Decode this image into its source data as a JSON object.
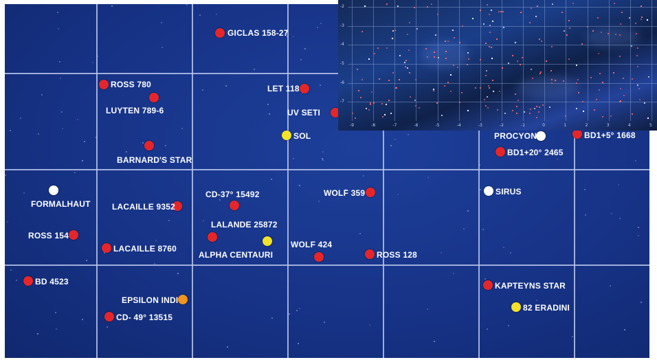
{
  "stars": [
    {
      "name": "GICLAS 158-27",
      "color": "#e4262b"
    },
    {
      "name": "ROSS 780",
      "color": "#e4262b"
    },
    {
      "name": "LUYTEN 789-6",
      "color": "#e4262b"
    },
    {
      "name": "LET 118",
      "color": "#e4262b"
    },
    {
      "name": "UV SETI",
      "color": "#e4262b"
    },
    {
      "name": "SOL",
      "color": "#f3e22a"
    },
    {
      "name": "BARNARD'S STAR",
      "color": "#e4262b"
    },
    {
      "name": "PROCYON",
      "color": "#ffffff"
    },
    {
      "name": "BD1+5° 1668",
      "color": "#e4262b"
    },
    {
      "name": "BD1+20° 2465",
      "color": "#e4262b"
    },
    {
      "name": "FORMALHAUT",
      "color": "#ffffff"
    },
    {
      "name": "CD-37° 15492",
      "color": "#e4262b"
    },
    {
      "name": "WOLF 359",
      "color": "#e4262b"
    },
    {
      "name": "SIRUS",
      "color": "#ffffff"
    },
    {
      "name": "LACAILLE 9352",
      "color": "#e4262b"
    },
    {
      "name": "LALANDE 25872",
      "color": "#e4262b"
    },
    {
      "name": "ROSS 154",
      "color": "#e4262b"
    },
    {
      "name": "LACAILLE 8760",
      "color": "#e4262b"
    },
    {
      "name": "ALPHA CENTAURI",
      "color": "#f3e22a"
    },
    {
      "name": "WOLF 424",
      "color": "#e4262b"
    },
    {
      "name": "ROSS 128",
      "color": "#e4262b"
    },
    {
      "name": "BD 4523",
      "color": "#e4262b"
    },
    {
      "name": "KAPTEYNS STAR",
      "color": "#e4262b"
    },
    {
      "name": "EPSILON INDI",
      "color": "#f0951e"
    },
    {
      "name": "82 ERADINI",
      "color": "#f3e22a"
    },
    {
      "name": "CD- 49° 13515",
      "color": "#e4262b"
    }
  ],
  "inset": {
    "x_ticks": [
      "-9",
      "-8",
      "-7",
      "-6",
      "-5",
      "-4",
      "-3",
      "-2",
      "-1",
      "0",
      "1",
      "2",
      "3",
      "4",
      "5"
    ],
    "y_ticks": [
      "-2",
      "-3",
      "-4",
      "-5",
      "-6",
      "-7"
    ]
  }
}
